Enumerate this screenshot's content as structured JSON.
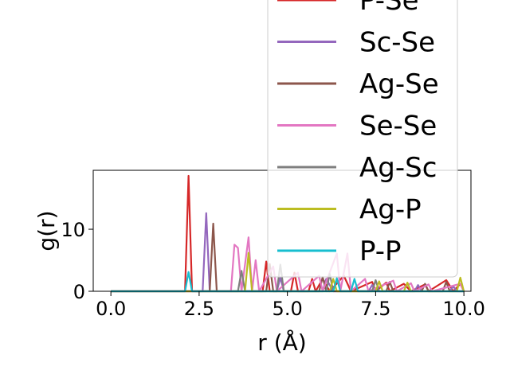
{
  "chart_data": {
    "type": "line",
    "xlabel": "r (Å)",
    "ylabel": "g(r)",
    "xlim": [
      -0.5,
      10.2
    ],
    "ylim": [
      0,
      19.5
    ],
    "x_ticks": [
      0.0,
      2.5,
      5.0,
      7.5,
      10.0
    ],
    "x_tick_labels": [
      "0.0",
      "2.5",
      "5.0",
      "7.5",
      "10.0"
    ],
    "y_ticks": [
      0,
      10
    ],
    "y_tick_labels": [
      "0",
      "10"
    ],
    "legend_position": "upper-right (overflowing top)",
    "series": [
      {
        "name": "P-Se",
        "color": "#d62728",
        "points": [
          [
            0,
            0
          ],
          [
            2.1,
            0
          ],
          [
            2.2,
            18.6
          ],
          [
            2.3,
            0
          ],
          [
            4.3,
            0
          ],
          [
            4.4,
            4.8
          ],
          [
            4.5,
            0
          ],
          [
            5.1,
            0
          ],
          [
            5.2,
            3.0
          ],
          [
            5.3,
            0
          ],
          [
            5.6,
            0
          ],
          [
            5.7,
            2.0
          ],
          [
            5.8,
            0
          ],
          [
            6.0,
            2.0
          ],
          [
            6.2,
            0
          ],
          [
            6.6,
            2.5
          ],
          [
            6.8,
            0
          ],
          [
            7.4,
            1.5
          ],
          [
            7.5,
            0
          ],
          [
            7.8,
            1.4
          ],
          [
            7.9,
            0
          ],
          [
            8.3,
            1.2
          ],
          [
            8.5,
            0
          ],
          [
            8.9,
            1.1
          ],
          [
            9.0,
            0
          ],
          [
            9.5,
            1.8
          ],
          [
            9.7,
            0
          ],
          [
            9.9,
            1.2
          ],
          [
            10,
            0
          ]
        ]
      },
      {
        "name": "Sc-Se",
        "color": "#9467bd",
        "points": [
          [
            0,
            0
          ],
          [
            2.6,
            0
          ],
          [
            2.7,
            12.6
          ],
          [
            2.8,
            0
          ],
          [
            4.7,
            0
          ],
          [
            4.8,
            2.2
          ],
          [
            4.9,
            0
          ],
          [
            6.0,
            0
          ],
          [
            6.1,
            2.0
          ],
          [
            6.3,
            0
          ],
          [
            7.3,
            0
          ],
          [
            7.4,
            1.0
          ],
          [
            7.5,
            0
          ],
          [
            8.6,
            0
          ],
          [
            8.7,
            1.0
          ],
          [
            8.8,
            0
          ],
          [
            9.6,
            0
          ],
          [
            9.7,
            0.8
          ],
          [
            9.8,
            0
          ],
          [
            10,
            0
          ]
        ]
      },
      {
        "name": "Ag-Se",
        "color": "#8c564b",
        "points": [
          [
            0,
            0
          ],
          [
            2.8,
            0
          ],
          [
            2.9,
            10.9
          ],
          [
            3.0,
            0
          ],
          [
            4.4,
            0
          ],
          [
            4.5,
            4.4
          ],
          [
            4.6,
            0
          ],
          [
            5.9,
            0
          ],
          [
            6.0,
            2.3
          ],
          [
            6.1,
            0
          ],
          [
            7.8,
            0
          ],
          [
            7.9,
            1.5
          ],
          [
            8.0,
            0
          ],
          [
            8.8,
            0
          ],
          [
            8.9,
            1.2
          ],
          [
            9.0,
            0
          ],
          [
            9.4,
            0
          ],
          [
            9.5,
            1.5
          ],
          [
            9.6,
            0
          ],
          [
            10,
            0
          ]
        ]
      },
      {
        "name": "Se-Se",
        "color": "#e377c2",
        "points": [
          [
            0,
            0
          ],
          [
            3.4,
            0
          ],
          [
            3.5,
            7.5
          ],
          [
            3.6,
            7.0
          ],
          [
            3.7,
            0
          ],
          [
            3.9,
            8.7
          ],
          [
            4.0,
            0
          ],
          [
            4.1,
            5.0
          ],
          [
            4.2,
            0
          ],
          [
            4.6,
            4.0
          ],
          [
            4.7,
            0
          ],
          [
            5.3,
            3.0
          ],
          [
            5.4,
            0
          ],
          [
            5.9,
            2.5
          ],
          [
            6.0,
            0
          ],
          [
            6.4,
            6.1
          ],
          [
            6.5,
            0
          ],
          [
            6.7,
            6.1
          ],
          [
            6.8,
            0
          ],
          [
            7.2,
            2.0
          ],
          [
            7.3,
            0
          ],
          [
            8.0,
            1.7
          ],
          [
            8.1,
            0
          ],
          [
            8.5,
            1.3
          ],
          [
            8.6,
            0
          ],
          [
            9.0,
            1.1
          ],
          [
            9.1,
            0
          ],
          [
            9.9,
            1.2
          ],
          [
            10,
            0
          ]
        ]
      },
      {
        "name": "Ag-Sc",
        "color": "#7f7f7f",
        "points": [
          [
            0,
            0
          ],
          [
            3.6,
            0
          ],
          [
            3.7,
            3.3
          ],
          [
            3.8,
            0
          ],
          [
            4.7,
            0
          ],
          [
            4.8,
            4.3
          ],
          [
            4.9,
            0
          ],
          [
            6.1,
            0
          ],
          [
            6.2,
            2.8
          ],
          [
            6.3,
            0
          ],
          [
            7.4,
            0
          ],
          [
            7.5,
            1.8
          ],
          [
            7.6,
            0
          ],
          [
            10,
            0
          ]
        ]
      },
      {
        "name": "Ag-P",
        "color": "#bcbd22",
        "points": [
          [
            0,
            0
          ],
          [
            3.8,
            0
          ],
          [
            3.9,
            6.2
          ],
          [
            4.0,
            0
          ],
          [
            6.2,
            0
          ],
          [
            6.3,
            2.0
          ],
          [
            6.4,
            0
          ],
          [
            7.5,
            0
          ],
          [
            7.6,
            1.6
          ],
          [
            7.7,
            0
          ],
          [
            8.3,
            0
          ],
          [
            8.4,
            1.4
          ],
          [
            8.5,
            0
          ],
          [
            9.8,
            0
          ],
          [
            9.9,
            2.2
          ],
          [
            10,
            0
          ]
        ]
      },
      {
        "name": "P-P",
        "color": "#17becf",
        "points": [
          [
            0,
            0
          ],
          [
            2.1,
            0
          ],
          [
            2.2,
            3.1
          ],
          [
            2.3,
            0
          ],
          [
            6.3,
            0
          ],
          [
            6.4,
            2.1
          ],
          [
            6.5,
            0
          ],
          [
            6.8,
            0
          ],
          [
            6.9,
            2.0
          ],
          [
            7.0,
            0
          ],
          [
            10,
            0
          ]
        ]
      }
    ]
  }
}
